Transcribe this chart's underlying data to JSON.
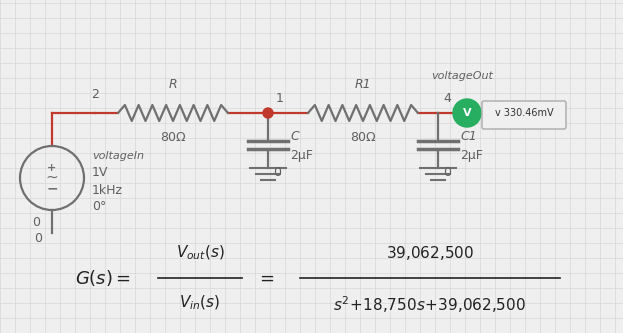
{
  "bg_color": "#efefef",
  "grid_color": "#d8d8d8",
  "wire_color": "#c0392b",
  "component_color": "#707070",
  "text_color": "#606060",
  "title": "voltageOut",
  "voltage_label": "v 330.46mV",
  "voltage_badge_color": "#27ae60",
  "node2_label": "2",
  "node1_label": "1",
  "node4_label": "4",
  "node0_label": "0",
  "R_label": "R",
  "R1_label": "R1",
  "R_val": "80Ω",
  "R1_val": "80Ω",
  "C_label": "C",
  "C1_label": "C1",
  "C_val": "2μF",
  "C1_val": "2μF",
  "voltageIn_label": "voltageIn",
  "vs_v": "1V",
  "vs_f": "1kHz",
  "vs_phase": "0°",
  "vs_node": "0"
}
